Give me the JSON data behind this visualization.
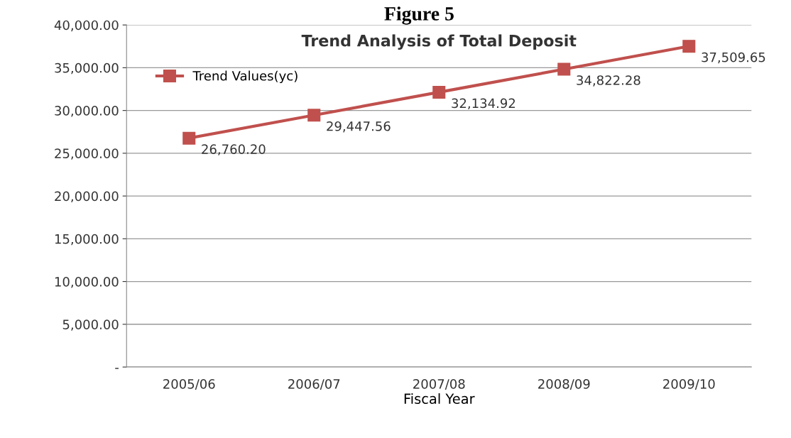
{
  "chart_data": {
    "type": "line",
    "title": "Figure 5",
    "subtitle": "Trend Analysis of Total Deposit",
    "xlabel": "Fiscal Year",
    "categories": [
      "2005/06",
      "2006/07",
      "2007/08",
      "2008/09",
      "2009/10"
    ],
    "series": [
      {
        "name": "Trend Values(yc)",
        "color": "#c0504d",
        "values": [
          26760.2,
          29447.56,
          32134.92,
          34822.28,
          37509.65
        ],
        "value_labels": [
          "26,760.20",
          "29,447.56",
          "32,134.92",
          "34,822.28",
          "37,509.65"
        ]
      }
    ],
    "ylim": [
      0,
      40000
    ],
    "yticks": [
      {
        "value": 0,
        "label": "-"
      },
      {
        "value": 5000,
        "label": "5,000.00"
      },
      {
        "value": 10000,
        "label": "10,000.00"
      },
      {
        "value": 15000,
        "label": "15,000.00"
      },
      {
        "value": 20000,
        "label": "20,000.00"
      },
      {
        "value": 25000,
        "label": "25,000.00"
      },
      {
        "value": 30000,
        "label": "30,000.00"
      },
      {
        "value": 35000,
        "label": "35,000.00"
      },
      {
        "value": 40000,
        "label": "40,000.00"
      }
    ],
    "grid": "y",
    "legend": "top left",
    "marker": "square",
    "line_style": "solid"
  }
}
